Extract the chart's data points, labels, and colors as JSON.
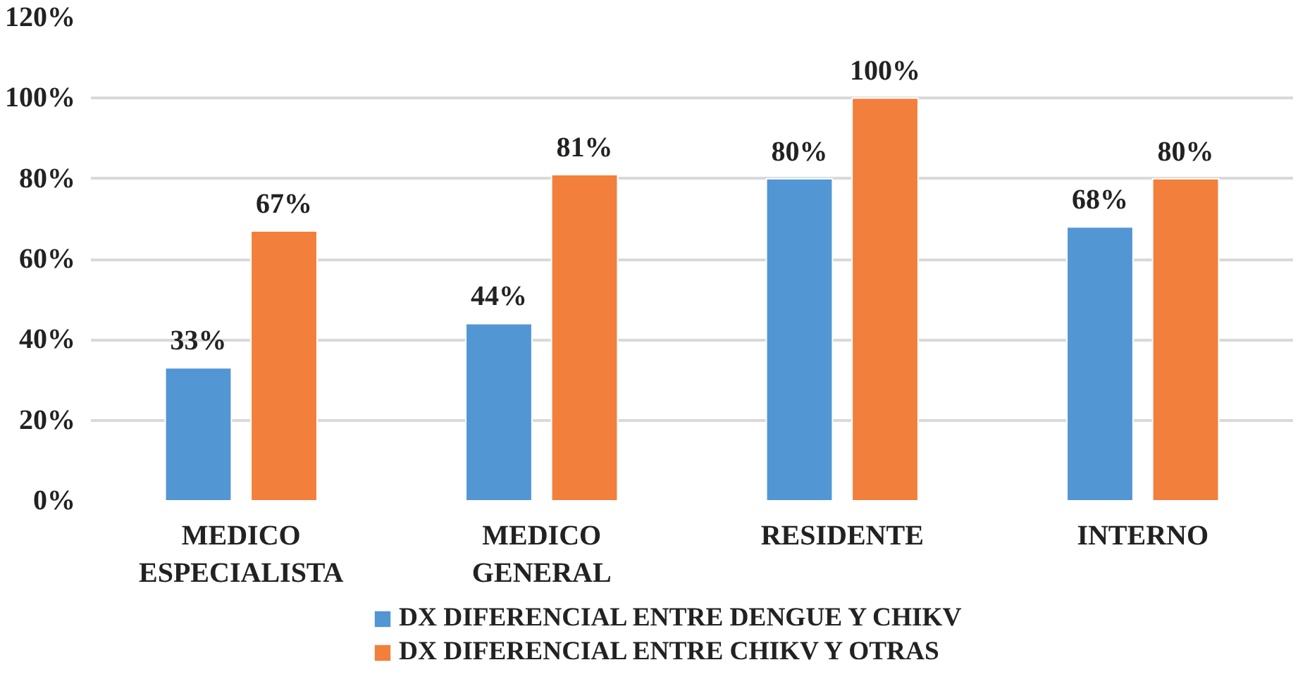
{
  "chart_data": {
    "type": "bar",
    "categories": [
      "MEDICO\nESPECIALISTA",
      "MEDICO\nGENERAL",
      "RESIDENTE",
      "INTERNO"
    ],
    "series": [
      {
        "name": "DX DIFERENCIAL ENTRE DENGUE Y CHIKV",
        "color": "#5296d3",
        "values": [
          33,
          44,
          80,
          68
        ],
        "value_labels": [
          "33%",
          "44%",
          "80%",
          "68%"
        ]
      },
      {
        "name": "DX DIFERENCIAL ENTRE CHIKV Y OTRAS",
        "color": "#f27f3b",
        "values": [
          67,
          81,
          100,
          80
        ],
        "value_labels": [
          "67%",
          "81%",
          "100%",
          "80%"
        ]
      }
    ],
    "ylim": [
      0,
      120
    ],
    "yticks": [
      {
        "value": 0,
        "label": "0%"
      },
      {
        "value": 20,
        "label": "20%"
      },
      {
        "value": 40,
        "label": "40%"
      },
      {
        "value": 60,
        "label": "60%"
      },
      {
        "value": 80,
        "label": "80%"
      },
      {
        "value": 100,
        "label": "100%"
      },
      {
        "value": 120,
        "label": "120%"
      }
    ],
    "grid": "y",
    "legend": "bottom"
  }
}
